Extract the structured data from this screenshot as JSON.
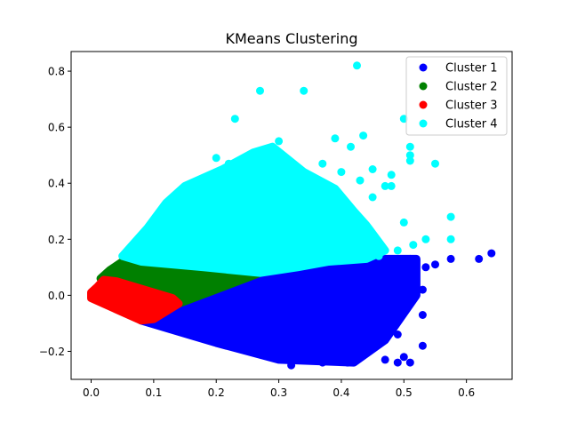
{
  "chart_data": {
    "type": "scatter",
    "title": "KMeans Clustering",
    "xlabel": "",
    "ylabel": "",
    "xlim": [
      -0.032,
      0.673
    ],
    "ylim": [
      -0.3,
      0.87
    ],
    "xticks": [
      0.0,
      0.1,
      0.2,
      0.3,
      0.4,
      0.5,
      0.6
    ],
    "xtick_labels": [
      "0.0",
      "0.1",
      "0.2",
      "0.3",
      "0.4",
      "0.5",
      "0.6"
    ],
    "yticks": [
      -0.2,
      0.0,
      0.2,
      0.4,
      0.6,
      0.8
    ],
    "ytick_labels": [
      "−0.2",
      "0.0",
      "0.2",
      "0.4",
      "0.6",
      "0.8"
    ],
    "grid": false,
    "legend_position": "top-right",
    "series": [
      {
        "name": "Cluster 1",
        "color": "#0000ff",
        "region": [
          [
            0.08,
            -0.09
          ],
          [
            0.14,
            -0.03
          ],
          [
            0.27,
            0.08
          ],
          [
            0.33,
            0.1
          ],
          [
            0.38,
            0.12
          ],
          [
            0.44,
            0.13
          ],
          [
            0.52,
            0.13
          ],
          [
            0.52,
            0.0
          ],
          [
            0.47,
            -0.16
          ],
          [
            0.42,
            -0.24
          ],
          [
            0.3,
            -0.23
          ],
          [
            0.2,
            -0.17
          ]
        ],
        "outliers": [
          [
            0.64,
            0.15
          ],
          [
            0.62,
            0.13
          ],
          [
            0.575,
            0.13
          ],
          [
            0.55,
            0.11
          ],
          [
            0.535,
            0.1
          ],
          [
            0.51,
            0.13
          ],
          [
            0.5,
            0.09
          ],
          [
            0.49,
            0.05
          ],
          [
            0.53,
            0.02
          ],
          [
            0.53,
            -0.07
          ],
          [
            0.53,
            -0.18
          ],
          [
            0.5,
            -0.22
          ],
          [
            0.51,
            -0.24
          ],
          [
            0.49,
            -0.24
          ],
          [
            0.47,
            -0.23
          ],
          [
            0.45,
            -0.18
          ],
          [
            0.44,
            -0.12
          ],
          [
            0.45,
            -0.08
          ],
          [
            0.46,
            0.0
          ],
          [
            0.49,
            -0.14
          ],
          [
            0.32,
            -0.25
          ],
          [
            0.37,
            -0.24
          ],
          [
            0.41,
            -0.24
          ]
        ]
      },
      {
        "name": "Cluster 2",
        "color": "#008000",
        "region": [
          [
            0.015,
            0.06
          ],
          [
            0.03,
            0.09
          ],
          [
            0.05,
            0.12
          ],
          [
            0.08,
            0.12
          ],
          [
            0.18,
            0.1
          ],
          [
            0.27,
            0.08
          ],
          [
            0.14,
            -0.03
          ],
          [
            0.13,
            -0.01
          ],
          [
            0.04,
            0.05
          ]
        ],
        "outliers": []
      },
      {
        "name": "Cluster 3",
        "color": "#ff0000",
        "region": [
          [
            0.0,
            0.01
          ],
          [
            0.01,
            0.03
          ],
          [
            0.02,
            0.055
          ],
          [
            0.04,
            0.05
          ],
          [
            0.13,
            -0.01
          ],
          [
            0.14,
            -0.03
          ],
          [
            0.1,
            -0.085
          ],
          [
            0.08,
            -0.09
          ],
          [
            0.0,
            -0.01
          ]
        ],
        "outliers": []
      },
      {
        "name": "Cluster 4",
        "color": "#00ffff",
        "region": [
          [
            0.05,
            0.14
          ],
          [
            0.09,
            0.24
          ],
          [
            0.12,
            0.33
          ],
          [
            0.15,
            0.39
          ],
          [
            0.21,
            0.45
          ],
          [
            0.26,
            0.51
          ],
          [
            0.29,
            0.53
          ],
          [
            0.34,
            0.44
          ],
          [
            0.39,
            0.38
          ],
          [
            0.42,
            0.3
          ],
          [
            0.44,
            0.25
          ],
          [
            0.47,
            0.16
          ],
          [
            0.44,
            0.13
          ],
          [
            0.38,
            0.12
          ],
          [
            0.33,
            0.1
          ],
          [
            0.27,
            0.08
          ],
          [
            0.18,
            0.1
          ],
          [
            0.08,
            0.12
          ]
        ],
        "outliers": [
          [
            0.425,
            0.82
          ],
          [
            0.27,
            0.73
          ],
          [
            0.34,
            0.73
          ],
          [
            0.23,
            0.63
          ],
          [
            0.5,
            0.63
          ],
          [
            0.435,
            0.57
          ],
          [
            0.39,
            0.56
          ],
          [
            0.415,
            0.53
          ],
          [
            0.51,
            0.53
          ],
          [
            0.51,
            0.5
          ],
          [
            0.51,
            0.48
          ],
          [
            0.55,
            0.47
          ],
          [
            0.37,
            0.47
          ],
          [
            0.45,
            0.45
          ],
          [
            0.4,
            0.44
          ],
          [
            0.48,
            0.43
          ],
          [
            0.47,
            0.39
          ],
          [
            0.48,
            0.39
          ],
          [
            0.43,
            0.41
          ],
          [
            0.45,
            0.35
          ],
          [
            0.5,
            0.26
          ],
          [
            0.575,
            0.28
          ],
          [
            0.575,
            0.2
          ],
          [
            0.535,
            0.2
          ],
          [
            0.515,
            0.18
          ],
          [
            0.49,
            0.16
          ],
          [
            0.46,
            0.14
          ],
          [
            0.44,
            0.17
          ],
          [
            0.3,
            0.55
          ],
          [
            0.31,
            0.49
          ],
          [
            0.22,
            0.47
          ],
          [
            0.2,
            0.49
          ],
          [
            0.32,
            0.41
          ],
          [
            0.35,
            0.41
          ],
          [
            0.28,
            0.45
          ],
          [
            0.26,
            0.5
          ]
        ]
      }
    ]
  }
}
